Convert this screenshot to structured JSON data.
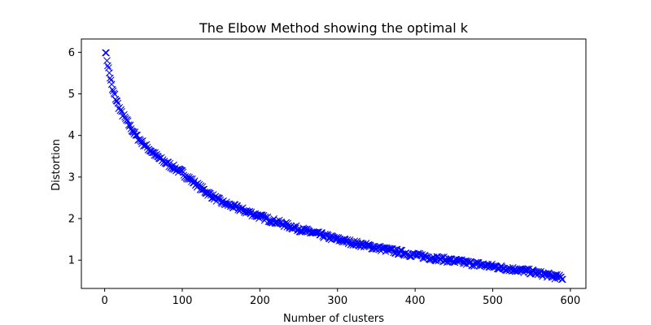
{
  "chart_data": {
    "type": "scatter",
    "title": "The Elbow Method showing the optimal k",
    "xlabel": "Number of clusters",
    "ylabel": "Distortion",
    "xlim": [
      -30,
      620
    ],
    "ylim": [
      0.32,
      6.32
    ],
    "xticks": [
      0,
      100,
      200,
      300,
      400,
      500,
      600
    ],
    "yticks": [
      1,
      2,
      3,
      4,
      5,
      6
    ],
    "grid": false,
    "marker": "x",
    "color": "#0000ff",
    "x_range": [
      1,
      590
    ],
    "key_points": [
      {
        "x": 1,
        "y": 6.05
      },
      {
        "x": 5,
        "y": 5.6
      },
      {
        "x": 10,
        "y": 5.1
      },
      {
        "x": 20,
        "y": 4.6
      },
      {
        "x": 30,
        "y": 4.3
      },
      {
        "x": 40,
        "y": 4.0
      },
      {
        "x": 50,
        "y": 3.8
      },
      {
        "x": 70,
        "y": 3.45
      },
      {
        "x": 100,
        "y": 3.1
      },
      {
        "x": 130,
        "y": 2.65
      },
      {
        "x": 150,
        "y": 2.4
      },
      {
        "x": 200,
        "y": 2.05
      },
      {
        "x": 250,
        "y": 1.75
      },
      {
        "x": 300,
        "y": 1.5
      },
      {
        "x": 350,
        "y": 1.3
      },
      {
        "x": 400,
        "y": 1.12
      },
      {
        "x": 450,
        "y": 0.98
      },
      {
        "x": 500,
        "y": 0.85
      },
      {
        "x": 550,
        "y": 0.72
      },
      {
        "x": 590,
        "y": 0.57
      }
    ]
  }
}
